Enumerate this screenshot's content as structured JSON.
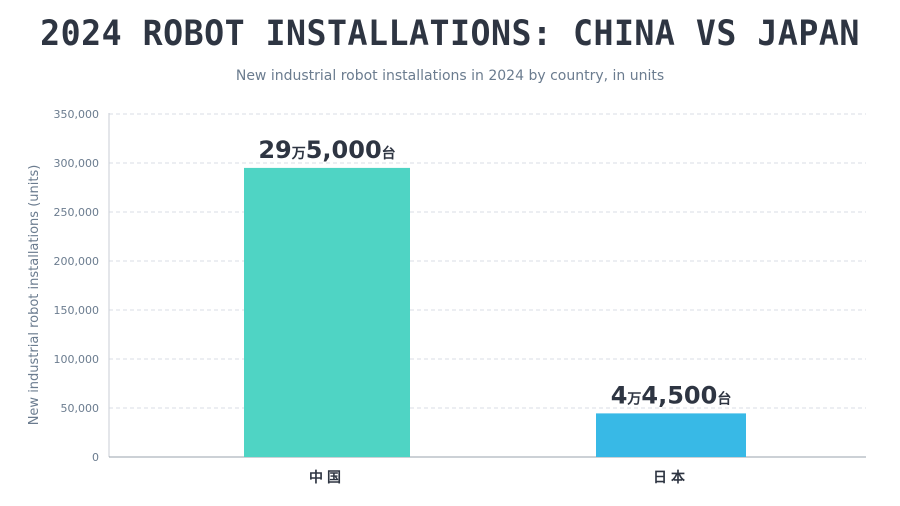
{
  "chart_data": {
    "type": "bar",
    "title": "2024 ROBOT INSTALLATIONS: CHINA VS JAPAN",
    "subtitle": "New industrial robot installations in 2024 by country, in units",
    "ylabel": "New industrial robot installations (units)",
    "xlabel": "",
    "categories": [
      "中国",
      "日本"
    ],
    "values": [
      295000,
      44500
    ],
    "data_labels": [
      {
        "num1": "29",
        "unit1": "万",
        "num2": "5,000",
        "unit2": "台"
      },
      {
        "num1": "4",
        "unit1": "万",
        "num2": "4,500",
        "unit2": "台"
      }
    ],
    "ylim": [
      0,
      350000
    ],
    "yticks": [
      0,
      50000,
      100000,
      150000,
      200000,
      250000,
      300000,
      350000
    ],
    "ytick_labels": [
      "0",
      "50,000",
      "100,000",
      "150,000",
      "200,000",
      "250,000",
      "300,000",
      "350,000"
    ],
    "colors": [
      "#4fd4c4",
      "#38b9e6"
    ],
    "grid": true,
    "legend": "none"
  }
}
